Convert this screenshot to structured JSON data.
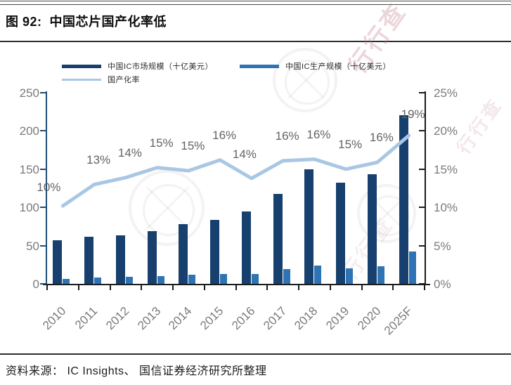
{
  "figure": {
    "title": "图 92:  中国芯片国产化率低",
    "source": "资料来源： IC Insights、 国信证券经济研究所整理"
  },
  "watermark": {
    "text": "行行查"
  },
  "colors": {
    "market_bar": "#17406e",
    "production_bar": "#2e74b5",
    "rate_line": "#a9c7e4",
    "left_axis": "#1f4e79",
    "right_axis": "#1b1b1b",
    "tick_text": "#7a7a7a",
    "data_label_text": "#636363"
  },
  "chart_data": {
    "type": "bar",
    "title": "中国芯片国产化率低",
    "categories": [
      "2010",
      "2011",
      "2012",
      "2013",
      "2014",
      "2015",
      "2016",
      "2017",
      "2018",
      "2019",
      "2020",
      "2025F"
    ],
    "series": [
      {
        "name": "中国IC市场规模（十亿美元）",
        "type": "bar",
        "axis": "left",
        "color": "#17406e",
        "values": [
          57,
          62,
          63,
          69,
          78,
          84,
          95,
          118,
          150,
          132,
          143,
          221
        ]
      },
      {
        "name": "中国IC生产规模（十亿美元）",
        "type": "bar",
        "axis": "left",
        "color": "#2e74b5",
        "values": [
          6,
          8,
          9,
          10,
          12,
          13,
          13,
          19,
          24,
          20,
          23,
          42
        ]
      },
      {
        "name": "国产化率",
        "type": "line",
        "axis": "right",
        "color": "#a9c7e4",
        "values": [
          10.2,
          13,
          13.9,
          15.2,
          14.8,
          16.2,
          13.8,
          16.1,
          16.3,
          15,
          15.9,
          19.4
        ],
        "labels": [
          "10%",
          "13%",
          "14%",
          "15%",
          "15%",
          "16%",
          "14%",
          "16%",
          "16%",
          "15%",
          "16%",
          "19%"
        ]
      }
    ],
    "left_axis": {
      "min": 0,
      "max": 250,
      "ticks": [
        "250",
        "200",
        "150",
        "100",
        "50",
        "0"
      ]
    },
    "right_axis": {
      "min": 0,
      "max": 25,
      "ticks": [
        "25%",
        "20%",
        "15%",
        "10%",
        "5%",
        "0%"
      ]
    },
    "grid": false,
    "legend_position": "top"
  }
}
